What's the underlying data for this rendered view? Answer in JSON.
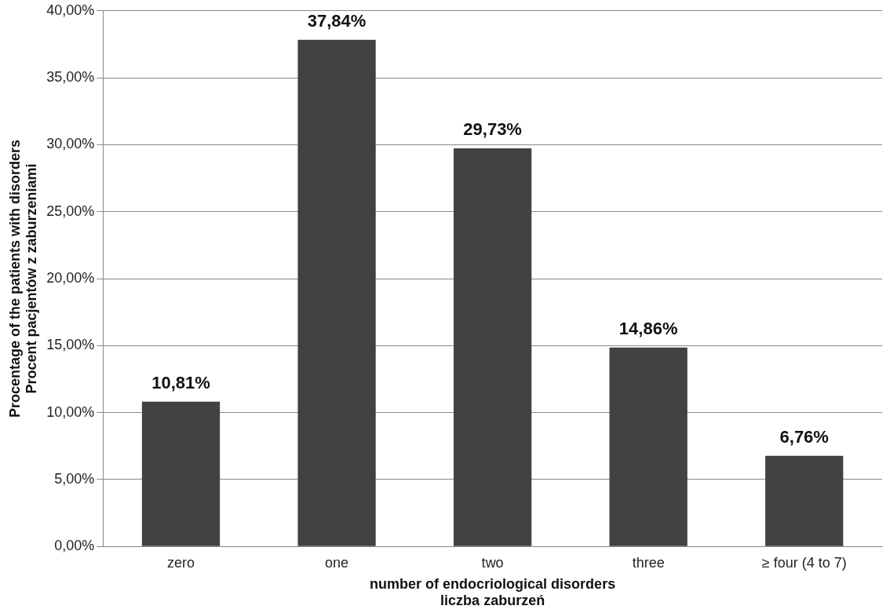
{
  "chart_data": {
    "type": "bar",
    "xlabel": "number of endocriological disorders\nliczba zaburzeń",
    "ylabel": "Procentage of the patients with disorders\nProcent pacjentów z zaburzeniami",
    "categories": [
      "zero",
      "one",
      "two",
      "three",
      "≥ four (4 to 7)"
    ],
    "values": [
      10.81,
      37.84,
      29.73,
      14.86,
      6.76
    ],
    "value_labels": [
      "10,81%",
      "37,84%",
      "29,73%",
      "14,86%",
      "6,76%"
    ],
    "color": "#424242",
    "ylim": [
      0,
      40
    ],
    "yticks": [
      {
        "value": 0,
        "label": "0,00%"
      },
      {
        "value": 5,
        "label": "5,00%"
      },
      {
        "value": 10,
        "label": "10,00%"
      },
      {
        "value": 15,
        "label": "15,00%"
      },
      {
        "value": 20,
        "label": "20,00%"
      },
      {
        "value": 25,
        "label": "25,00%"
      },
      {
        "value": 30,
        "label": "30,00%"
      },
      {
        "value": 35,
        "label": "35,00%"
      },
      {
        "value": 40,
        "label": "40,00%"
      }
    ],
    "grid": "y",
    "legend": false
  }
}
